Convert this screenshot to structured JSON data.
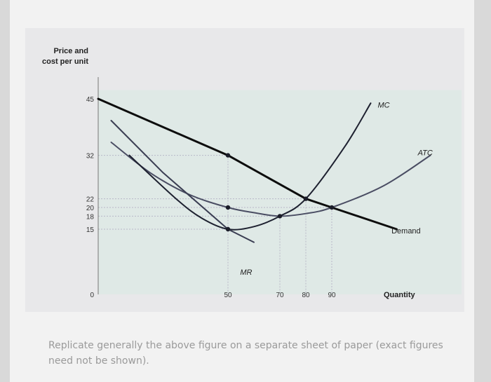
{
  "chart_data": {
    "type": "line",
    "ylabel_line1": "Price and",
    "ylabel_line2": "cost per unit",
    "xlabel": "Quantity",
    "y_ticks": [
      0,
      15,
      18,
      20,
      22,
      32,
      45
    ],
    "x_ticks": [
      50,
      70,
      80,
      90
    ],
    "series": [
      {
        "name": "Demand",
        "x": [
          0,
          50,
          80,
          90,
          115
        ],
        "y": [
          45,
          32,
          22,
          20,
          15
        ]
      },
      {
        "name": "MR",
        "x": [
          5,
          25,
          50,
          60
        ],
        "y": [
          40,
          28,
          15,
          12
        ]
      },
      {
        "name": "MC",
        "x": [
          12,
          30,
          40,
          50,
          60,
          70,
          80,
          95,
          105
        ],
        "y": [
          32,
          22,
          17.5,
          15,
          15.6,
          18,
          22,
          34,
          44
        ]
      },
      {
        "name": "ATC",
        "x": [
          5,
          20,
          35,
          50,
          60,
          70,
          80,
          90,
          110,
          128
        ],
        "y": [
          35,
          28,
          23,
          20,
          18.8,
          18,
          18.6,
          20,
          25,
          32
        ]
      }
    ],
    "points": [
      {
        "x": 50,
        "y": 32
      },
      {
        "x": 50,
        "y": 20
      },
      {
        "x": 50,
        "y": 15
      },
      {
        "x": 70,
        "y": 18
      },
      {
        "x": 80,
        "y": 22
      },
      {
        "x": 90,
        "y": 20
      }
    ],
    "colors": {
      "demand": "#0d0d0d",
      "mr": "#3a3d52",
      "mc": "#1e2130",
      "atc": "#4a4d63",
      "dots": "#1a1c28",
      "guides": "#b8b8c8"
    }
  },
  "caption": "Replicate generally the above figure on a separate sheet of paper (exact figures need not be shown)."
}
